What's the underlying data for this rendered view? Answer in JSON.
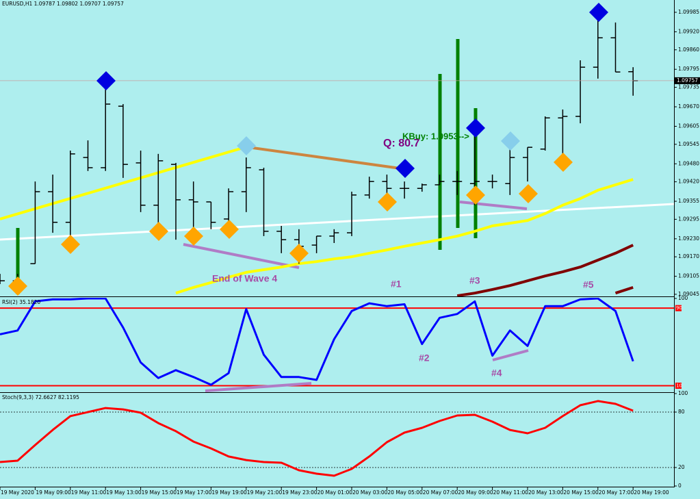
{
  "chart_data": [
    {
      "type": "ohlc",
      "title": "EURUSD,H1  1.09787 1.09802 1.09707 1.09757",
      "categories": [
        "19 May 2020",
        null,
        "19 May 09:00",
        null,
        "19 May 11:00",
        null,
        "19 May 13:00",
        null,
        "19 May 15:00",
        null,
        "19 May 17:00",
        null,
        "19 May 19:00",
        null,
        "19 May 21:00",
        null,
        "19 May 23:00",
        null,
        "20 May 01:00",
        null,
        "20 May 03:00",
        null,
        "20 May 05:00",
        null,
        "20 May 07:00",
        null,
        "20 May 09:00",
        null,
        "20 May 11:00",
        null,
        "20 May 13:00",
        null,
        "20 May 15:00",
        null,
        "20 May 17:00",
        null,
        "20 May 19:00"
      ],
      "open": [
        1.09102,
        1.0909,
        1.09147,
        1.09387,
        1.09285,
        1.09501,
        1.09467,
        1.09672,
        1.09483,
        1.09342,
        1.09478,
        1.0936,
        1.09353,
        1.09296,
        1.09387,
        1.0946,
        1.09255,
        1.09227,
        1.09209,
        1.09239,
        1.0925,
        1.09376,
        1.09421,
        1.09398,
        1.09398,
        1.0941,
        1.09421,
        1.09414,
        1.09421,
        1.09414,
        1.09501,
        1.09529,
        1.09633,
        1.09638,
        1.09802,
        1.099,
        1.09787
      ],
      "high": [
        1.09113,
        1.09113,
        1.09421,
        1.09444,
        1.09524,
        1.09558,
        1.09752,
        1.09679,
        1.09524,
        1.09513,
        1.09483,
        1.09421,
        1.09353,
        1.09398,
        1.09501,
        1.09467,
        1.09273,
        1.09262,
        1.09239,
        1.09262,
        1.09387,
        1.09437,
        1.09444,
        1.09421,
        1.09414,
        1.09444,
        1.09456,
        1.09615,
        1.09444,
        1.09558,
        1.09535,
        1.09638,
        1.09661,
        1.09825,
        1.0998,
        1.09951,
        1.09802
      ],
      "low": [
        1.09079,
        1.09056,
        1.09147,
        1.0925,
        1.09227,
        1.09456,
        1.09456,
        1.09433,
        1.09319,
        1.09273,
        1.09227,
        1.09239,
        1.09262,
        1.09273,
        1.09319,
        1.09239,
        1.09182,
        1.09147,
        1.09182,
        1.09216,
        1.09239,
        1.09364,
        1.09364,
        1.09364,
        1.09387,
        1.0941,
        1.09376,
        1.09342,
        1.09398,
        1.09376,
        1.09421,
        1.09524,
        1.09513,
        1.09615,
        1.09764,
        1.09786,
        1.09707
      ],
      "close": [
        1.0909,
        1.09072,
        1.09387,
        1.09285,
        1.09513,
        1.09467,
        1.09679,
        1.09478,
        1.09342,
        1.0949,
        1.0936,
        1.09353,
        1.09285,
        1.09387,
        1.09467,
        1.09255,
        1.09227,
        1.09205,
        1.09239,
        1.0925,
        1.09376,
        1.09421,
        1.09398,
        1.09398,
        1.0941,
        1.09421,
        1.09421,
        1.09421,
        1.09421,
        1.09501,
        1.09535,
        1.09633,
        1.09638,
        1.09802,
        1.099,
        1.09786,
        1.09757
      ],
      "color": "#000000",
      "ylim": [
        1.09038,
        1.10026
      ],
      "yticks": [
        1.09985,
        {
          "value": 1.0992,
          "label": "1.09920"
        },
        {
          "value": 1.0986,
          "label": "1.09860"
        },
        1.09795,
        1.09735,
        {
          "value": 1.0967,
          "label": "1.09670"
        },
        1.09605,
        1.09545,
        {
          "value": 1.0948,
          "label": "1.09480"
        },
        {
          "value": 1.0942,
          "label": "1.09420"
        },
        1.09355,
        1.09295,
        {
          "value": 1.0923,
          "label": "1.09230"
        },
        {
          "value": 1.0917,
          "label": "1.09170"
        },
        1.09105,
        1.09045
      ],
      "current_price": 1.09757,
      "overlays": [
        {
          "color": "#ffff00",
          "values": [
            null,
            null,
            null,
            null,
            null,
            null,
            null,
            null,
            null,
            null,
            1.09049,
            1.09068,
            1.09084,
            1.09102,
            1.09118,
            1.09127,
            1.09136,
            1.09147,
            1.09154,
            1.09163,
            1.0917,
            1.09182,
            1.09193,
            1.09205,
            1.09216,
            1.09227,
            1.09239,
            1.09255,
            1.09273,
            1.09282,
            1.09291,
            1.09314,
            1.09342,
            1.09364,
            1.09392,
            1.0941,
            1.09428
          ]
        },
        {
          "color": "#800000",
          "values": [
            null,
            null,
            null,
            null,
            null,
            null,
            null,
            null,
            null,
            null,
            null,
            null,
            null,
            null,
            null,
            null,
            null,
            null,
            null,
            null,
            null,
            null,
            null,
            null,
            null,
            null,
            1.0904,
            1.09049,
            1.09061,
            1.09074,
            1.0909,
            1.09106,
            1.0912,
            1.09136,
            1.09159,
            1.09182,
            1.09209
          ]
        },
        {
          "color": "#800000",
          "values": [
            null,
            null,
            null,
            null,
            null,
            null,
            null,
            null,
            null,
            null,
            null,
            null,
            null,
            null,
            null,
            null,
            null,
            null,
            null,
            null,
            null,
            null,
            null,
            null,
            null,
            null,
            null,
            null,
            null,
            null,
            null,
            null,
            null,
            null,
            null,
            1.09049,
            1.09068
          ]
        }
      ],
      "annotations": [
        "Q: 80.7",
        "KBuy: 1.0953-->",
        "End of Wave 4",
        "#1",
        "#3",
        "#5"
      ]
    },
    {
      "type": "line",
      "title": "RSI(2) 35.1820",
      "values": [
        63,
        67,
        97,
        99,
        99,
        100,
        100,
        70,
        34,
        18,
        26,
        19,
        11,
        23,
        89,
        42,
        19,
        19,
        16,
        58,
        87,
        95,
        92,
        94,
        53,
        80,
        84,
        97,
        41,
        67,
        51,
        92,
        92,
        99,
        100,
        87,
        35.18
      ],
      "color": "#0000ff",
      "ylim": [
        4,
        100
      ],
      "yticks": [
        100
      ],
      "levels": [
        90,
        10
      ],
      "level_color": "#ff0000",
      "level_labels": true,
      "annotations": [
        "#2",
        "#4"
      ]
    },
    {
      "type": "line",
      "title": "Stoch(9,3,3) 72.6627 82.1195",
      "values": [
        25.9,
        27.4,
        44.4,
        60.7,
        75.6,
        80,
        84.4,
        82.9,
        79.3,
        68.1,
        59.3,
        48.1,
        40.7,
        31.9,
        28.1,
        25.9,
        25.2,
        17,
        13.3,
        11.1,
        18.5,
        31.9,
        47.4,
        57.8,
        63,
        70.4,
        76.3,
        77,
        69.6,
        60.7,
        57,
        63,
        75.6,
        87.4,
        91.9,
        88.9,
        81.5
      ],
      "color": "#ff0000",
      "ylim": [
        0,
        100
      ],
      "yticks": [
        100,
        80,
        20,
        0
      ],
      "levels": [
        80,
        20
      ],
      "level_color": "#000000",
      "level_dash": true
    }
  ]
}
